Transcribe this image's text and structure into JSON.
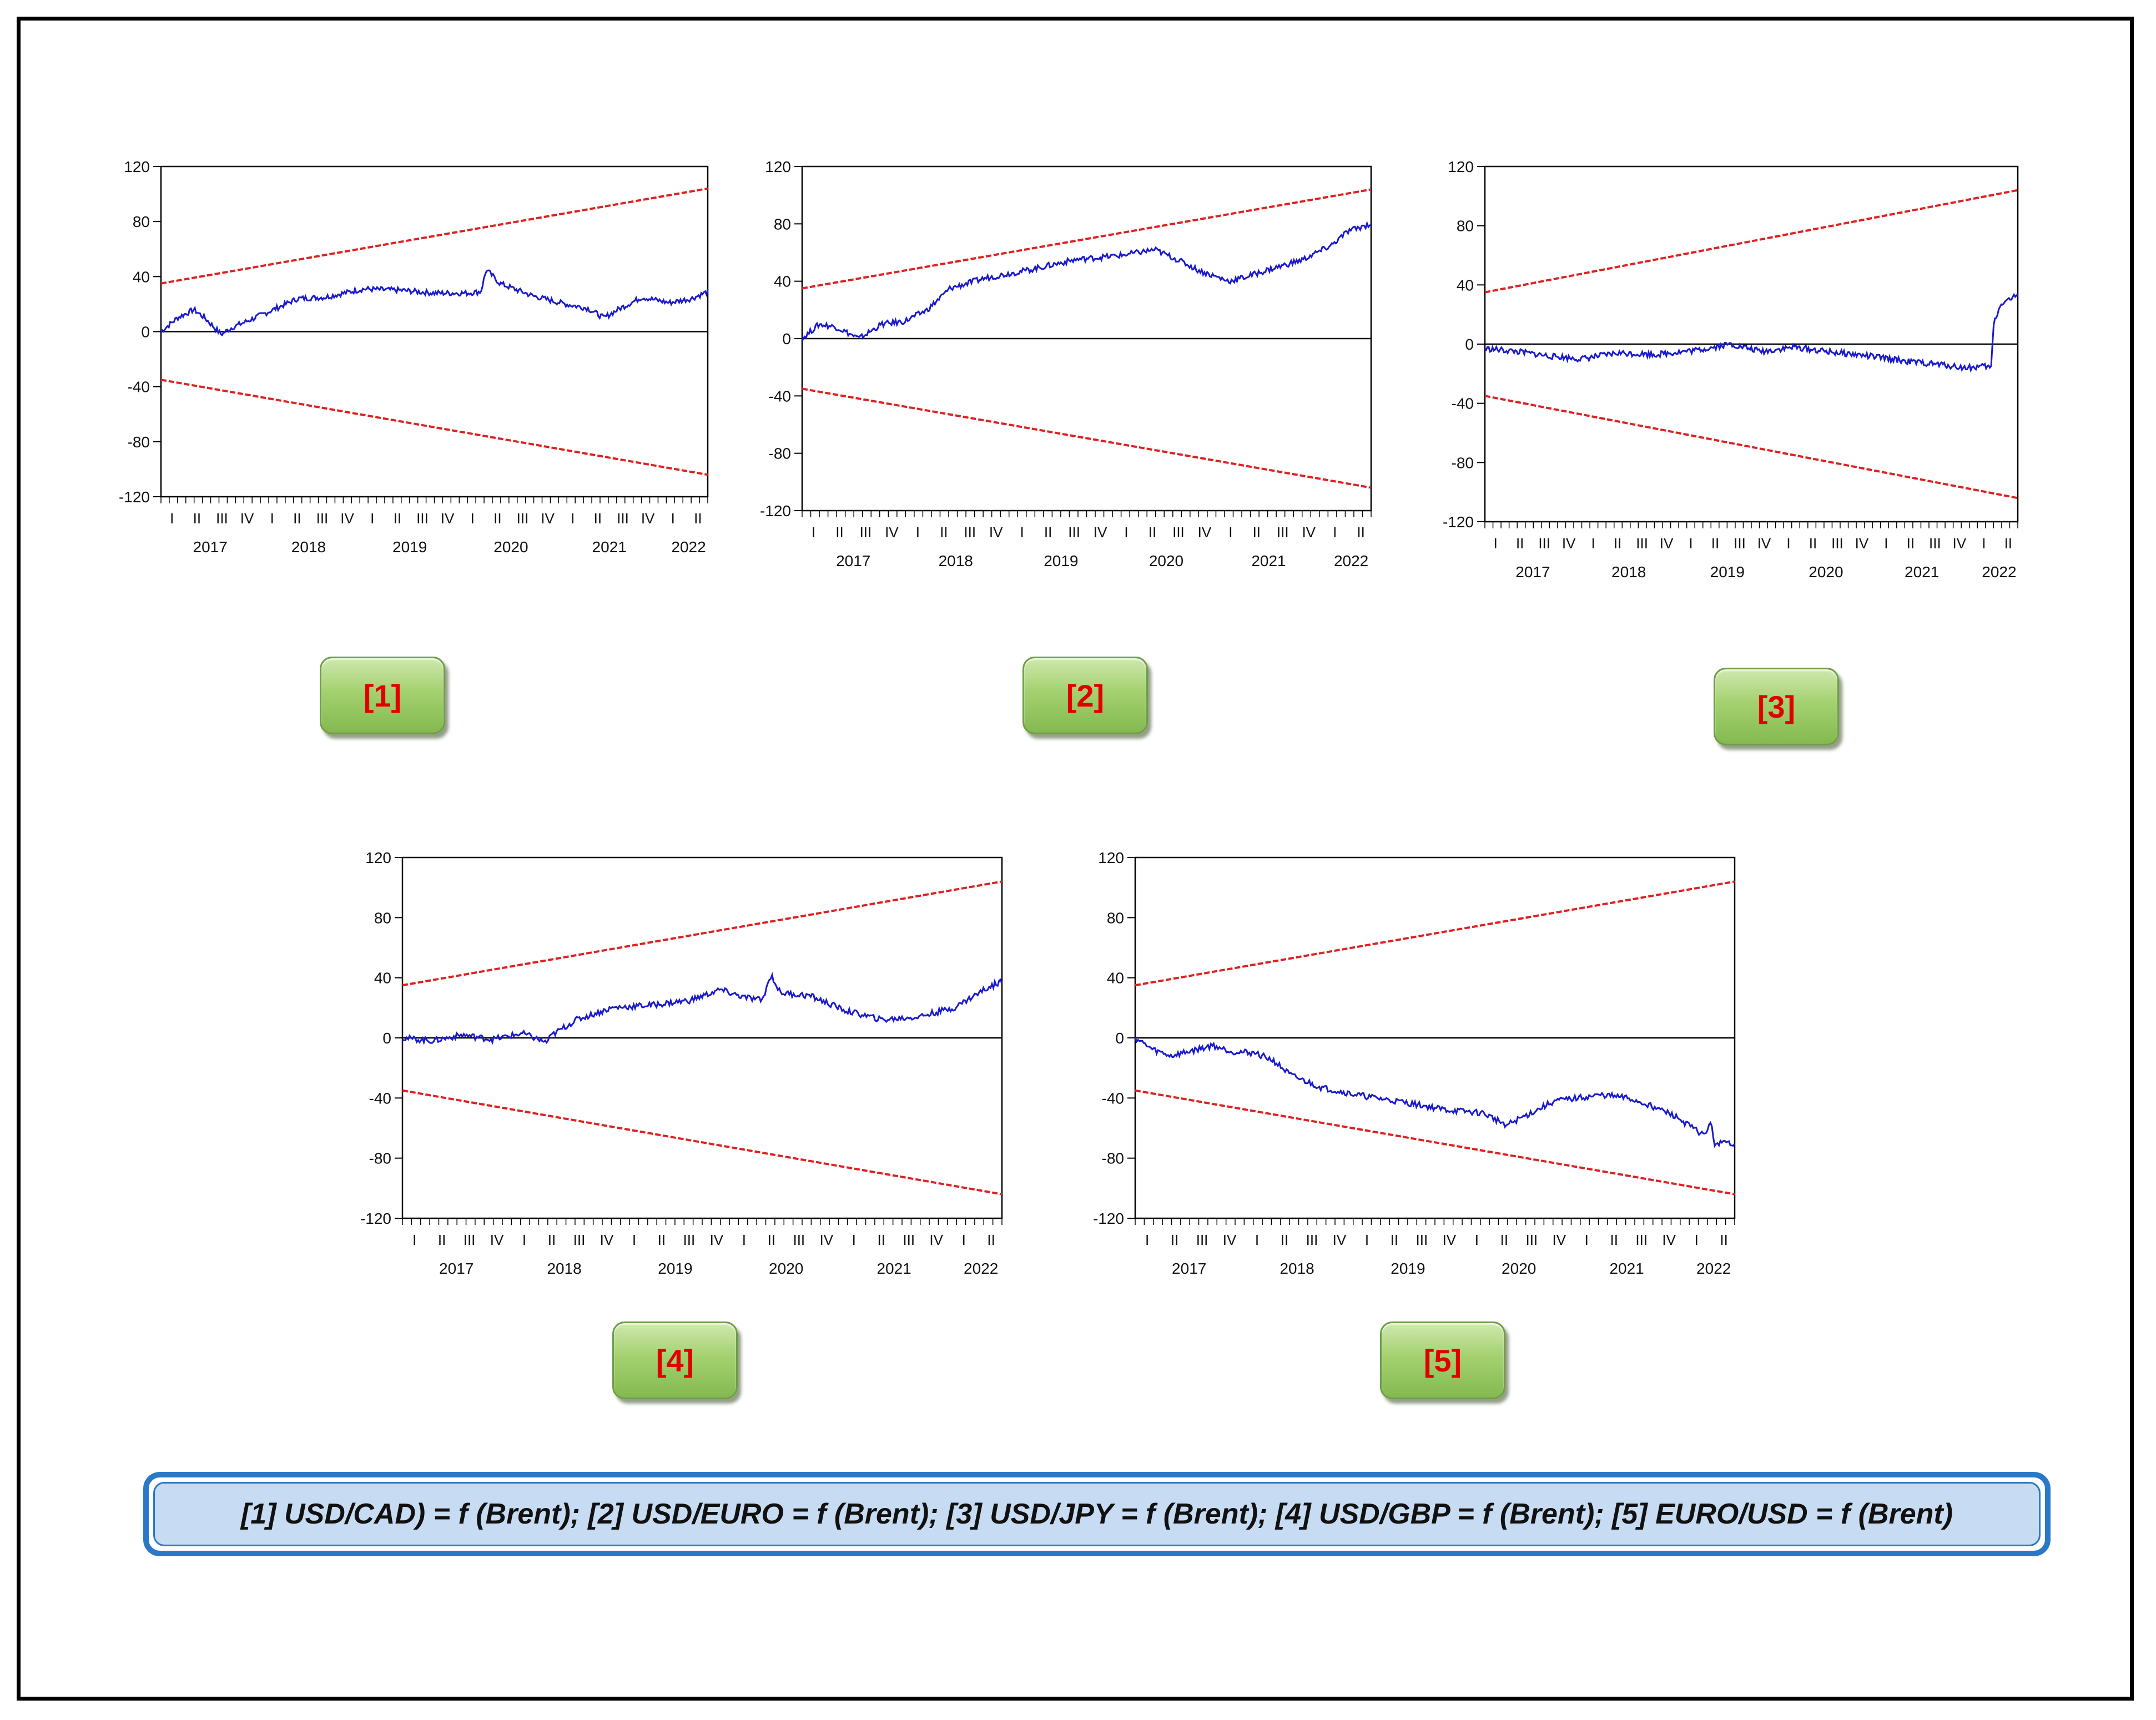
{
  "colors": {
    "series": "#1a1ad0",
    "bands": "#e02020",
    "zero": "#000000",
    "badge_text": "#e00000",
    "caption_border": "#2a78c8",
    "caption_fill": "#c7dcf3"
  },
  "caption": "[1] USD/CAD) = f (Brent); [2] USD/EURO = f (Brent); [3] USD/JPY = f (Brent); [4] USD/GBP = f (Brent); [5] EURO/USD = f (Brent)",
  "chart_data": [
    {
      "id": 1,
      "badge": "[1]",
      "type": "line",
      "ylim": [
        -120,
        120
      ],
      "yticks": [
        "120",
        "80",
        "40",
        "0",
        "-40",
        "-80",
        "-120"
      ],
      "year_labels": [
        "2017",
        "2018",
        "2019",
        "2020",
        "2021",
        "2022"
      ],
      "quarter_labels": [
        "I",
        "II",
        "III",
        "IV",
        "I",
        "II",
        "III",
        "IV",
        "I",
        "II",
        "III",
        "IV",
        "I",
        "II",
        "III",
        "IV",
        "I",
        "II",
        "III",
        "IV",
        "I",
        "II"
      ],
      "upper_band": [
        35,
        104
      ],
      "lower_band": [
        -35,
        -104
      ],
      "series": [
        {
          "t": 0,
          "v": 0
        },
        {
          "t": 0.03,
          "v": 10
        },
        {
          "t": 0.06,
          "v": 16
        },
        {
          "t": 0.08,
          "v": 10
        },
        {
          "t": 0.11,
          "v": -2
        },
        {
          "t": 0.13,
          "v": 3
        },
        {
          "t": 0.16,
          "v": 8
        },
        {
          "t": 0.2,
          "v": 15
        },
        {
          "t": 0.25,
          "v": 24
        },
        {
          "t": 0.3,
          "v": 25
        },
        {
          "t": 0.37,
          "v": 31
        },
        {
          "t": 0.44,
          "v": 30
        },
        {
          "t": 0.5,
          "v": 28
        },
        {
          "t": 0.56,
          "v": 28
        },
        {
          "t": 0.585,
          "v": 29
        },
        {
          "t": 0.595,
          "v": 45
        },
        {
          "t": 0.62,
          "v": 35
        },
        {
          "t": 0.68,
          "v": 26
        },
        {
          "t": 0.74,
          "v": 20
        },
        {
          "t": 0.78,
          "v": 17
        },
        {
          "t": 0.81,
          "v": 10
        },
        {
          "t": 0.84,
          "v": 17
        },
        {
          "t": 0.88,
          "v": 25
        },
        {
          "t": 0.93,
          "v": 21
        },
        {
          "t": 0.97,
          "v": 24
        },
        {
          "t": 1,
          "v": 29
        }
      ]
    },
    {
      "id": 2,
      "badge": "[2]",
      "type": "line",
      "ylim": [
        -120,
        120
      ],
      "yticks": [
        "120",
        "80",
        "40",
        "0",
        "-40",
        "-80",
        "-120"
      ],
      "year_labels": [
        "2017",
        "2018",
        "2019",
        "2020",
        "2021",
        "2022"
      ],
      "quarter_labels": [
        "I",
        "II",
        "III",
        "IV",
        "I",
        "II",
        "III",
        "IV",
        "I",
        "II",
        "III",
        "IV",
        "I",
        "II",
        "III",
        "IV",
        "I",
        "II",
        "III",
        "IV",
        "I",
        "II"
      ],
      "upper_band": [
        35,
        104
      ],
      "lower_band": [
        -35,
        -104
      ],
      "series": [
        {
          "t": 0,
          "v": 0
        },
        {
          "t": 0.03,
          "v": 10
        },
        {
          "t": 0.06,
          "v": 8
        },
        {
          "t": 0.1,
          "v": 0
        },
        {
          "t": 0.14,
          "v": 10
        },
        {
          "t": 0.18,
          "v": 12
        },
        {
          "t": 0.22,
          "v": 20
        },
        {
          "t": 0.26,
          "v": 35
        },
        {
          "t": 0.32,
          "v": 42
        },
        {
          "t": 0.4,
          "v": 48
        },
        {
          "t": 0.48,
          "v": 55
        },
        {
          "t": 0.56,
          "v": 58
        },
        {
          "t": 0.62,
          "v": 62
        },
        {
          "t": 0.66,
          "v": 55
        },
        {
          "t": 0.7,
          "v": 47
        },
        {
          "t": 0.75,
          "v": 40
        },
        {
          "t": 0.78,
          "v": 43
        },
        {
          "t": 0.82,
          "v": 48
        },
        {
          "t": 0.88,
          "v": 55
        },
        {
          "t": 0.93,
          "v": 65
        },
        {
          "t": 0.96,
          "v": 75
        },
        {
          "t": 1,
          "v": 80
        }
      ]
    },
    {
      "id": 3,
      "badge": "[3]",
      "type": "line",
      "ylim": [
        -120,
        120
      ],
      "yticks": [
        "120",
        "80",
        "40",
        "0",
        "-40",
        "-80",
        "-120"
      ],
      "year_labels": [
        "2017",
        "2018",
        "2019",
        "2020",
        "2021",
        "2022"
      ],
      "quarter_labels": [
        "I",
        "II",
        "III",
        "IV",
        "I",
        "II",
        "III",
        "IV",
        "I",
        "II",
        "III",
        "IV",
        "I",
        "II",
        "III",
        "IV",
        "I",
        "II",
        "III",
        "IV",
        "I",
        "II"
      ],
      "upper_band": [
        35,
        104
      ],
      "lower_band": [
        -35,
        -104
      ],
      "series": [
        {
          "t": 0,
          "v": -3
        },
        {
          "t": 0.06,
          "v": -5
        },
        {
          "t": 0.12,
          "v": -8
        },
        {
          "t": 0.18,
          "v": -10
        },
        {
          "t": 0.25,
          "v": -6
        },
        {
          "t": 0.32,
          "v": -7
        },
        {
          "t": 0.4,
          "v": -4
        },
        {
          "t": 0.46,
          "v": 0
        },
        {
          "t": 0.52,
          "v": -5
        },
        {
          "t": 0.58,
          "v": -2
        },
        {
          "t": 0.64,
          "v": -5
        },
        {
          "t": 0.72,
          "v": -8
        },
        {
          "t": 0.8,
          "v": -12
        },
        {
          "t": 0.86,
          "v": -14
        },
        {
          "t": 0.9,
          "v": -16
        },
        {
          "t": 0.94,
          "v": -15
        },
        {
          "t": 0.95,
          "v": -16
        },
        {
          "t": 0.955,
          "v": 15
        },
        {
          "t": 0.97,
          "v": 28
        },
        {
          "t": 1,
          "v": 33
        }
      ]
    },
    {
      "id": 4,
      "badge": "[4]",
      "type": "line",
      "ylim": [
        -120,
        120
      ],
      "yticks": [
        "120",
        "80",
        "40",
        "0",
        "-40",
        "-80",
        "-120"
      ],
      "year_labels": [
        "2017",
        "2018",
        "2019",
        "2020",
        "2021",
        "2022"
      ],
      "quarter_labels": [
        "I",
        "II",
        "III",
        "IV",
        "I",
        "II",
        "III",
        "IV",
        "I",
        "II",
        "III",
        "IV",
        "I",
        "II",
        "III",
        "IV",
        "I",
        "II",
        "III",
        "IV",
        "I",
        "II"
      ],
      "upper_band": [
        35,
        104
      ],
      "lower_band": [
        -35,
        -104
      ],
      "series": [
        {
          "t": 0,
          "v": 0
        },
        {
          "t": 0.05,
          "v": -2
        },
        {
          "t": 0.1,
          "v": 2
        },
        {
          "t": 0.15,
          "v": -1
        },
        {
          "t": 0.2,
          "v": 3
        },
        {
          "t": 0.24,
          "v": -3
        },
        {
          "t": 0.25,
          "v": 2
        },
        {
          "t": 0.29,
          "v": 12
        },
        {
          "t": 0.35,
          "v": 20
        },
        {
          "t": 0.42,
          "v": 22
        },
        {
          "t": 0.48,
          "v": 25
        },
        {
          "t": 0.53,
          "v": 32
        },
        {
          "t": 0.57,
          "v": 27
        },
        {
          "t": 0.6,
          "v": 25
        },
        {
          "t": 0.615,
          "v": 42
        },
        {
          "t": 0.63,
          "v": 30
        },
        {
          "t": 0.68,
          "v": 28
        },
        {
          "t": 0.74,
          "v": 18
        },
        {
          "t": 0.8,
          "v": 12
        },
        {
          "t": 0.86,
          "v": 14
        },
        {
          "t": 0.92,
          "v": 20
        },
        {
          "t": 0.97,
          "v": 32
        },
        {
          "t": 1,
          "v": 38
        }
      ]
    },
    {
      "id": 5,
      "badge": "[5]",
      "type": "line",
      "ylim": [
        -120,
        120
      ],
      "yticks": [
        "120",
        "80",
        "40",
        "0",
        "-40",
        "-80",
        "-120"
      ],
      "year_labels": [
        "2017",
        "2018",
        "2019",
        "2020",
        "2021",
        "2022"
      ],
      "quarter_labels": [
        "I",
        "II",
        "III",
        "IV",
        "I",
        "II",
        "III",
        "IV",
        "I",
        "II",
        "III",
        "IV",
        "I",
        "II",
        "III",
        "IV",
        "I",
        "II",
        "III",
        "IV",
        "I",
        "II"
      ],
      "upper_band": [
        35,
        104
      ],
      "lower_band": [
        -35,
        -104
      ],
      "series": [
        {
          "t": 0,
          "v": 0
        },
        {
          "t": 0.03,
          "v": -8
        },
        {
          "t": 0.06,
          "v": -12
        },
        {
          "t": 0.1,
          "v": -8
        },
        {
          "t": 0.13,
          "v": -5
        },
        {
          "t": 0.16,
          "v": -9
        },
        {
          "t": 0.2,
          "v": -10
        },
        {
          "t": 0.23,
          "v": -15
        },
        {
          "t": 0.26,
          "v": -25
        },
        {
          "t": 0.31,
          "v": -33
        },
        {
          "t": 0.37,
          "v": -38
        },
        {
          "t": 0.45,
          "v": -43
        },
        {
          "t": 0.52,
          "v": -48
        },
        {
          "t": 0.58,
          "v": -50
        },
        {
          "t": 0.62,
          "v": -58
        },
        {
          "t": 0.66,
          "v": -50
        },
        {
          "t": 0.7,
          "v": -42
        },
        {
          "t": 0.74,
          "v": -40
        },
        {
          "t": 0.78,
          "v": -38
        },
        {
          "t": 0.82,
          "v": -40
        },
        {
          "t": 0.86,
          "v": -45
        },
        {
          "t": 0.9,
          "v": -52
        },
        {
          "t": 0.93,
          "v": -60
        },
        {
          "t": 0.95,
          "v": -65
        },
        {
          "t": 0.96,
          "v": -55
        },
        {
          "t": 0.965,
          "v": -70
        },
        {
          "t": 1,
          "v": -70
        }
      ]
    }
  ]
}
